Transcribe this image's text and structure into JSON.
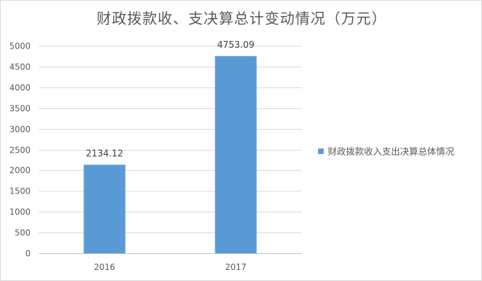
{
  "chart_data": {
    "type": "bar",
    "title": "财政拨款收、支决算总计变动情况（万元）",
    "xlabel": "",
    "ylabel": "",
    "categories": [
      "2016",
      "2017"
    ],
    "series": [
      {
        "name": "财政拨款收入支出决算总体情况",
        "values": [
          2134.12,
          4753.09
        ],
        "data_labels": [
          "2134.12",
          "4753.09"
        ],
        "color": "#5b9bd5"
      }
    ],
    "ylim": [
      0,
      5000
    ],
    "yticks": [
      0,
      500,
      1000,
      1500,
      2000,
      2500,
      3000,
      3500,
      4000,
      4500,
      5000
    ],
    "grid": true,
    "legend_position": "right"
  }
}
